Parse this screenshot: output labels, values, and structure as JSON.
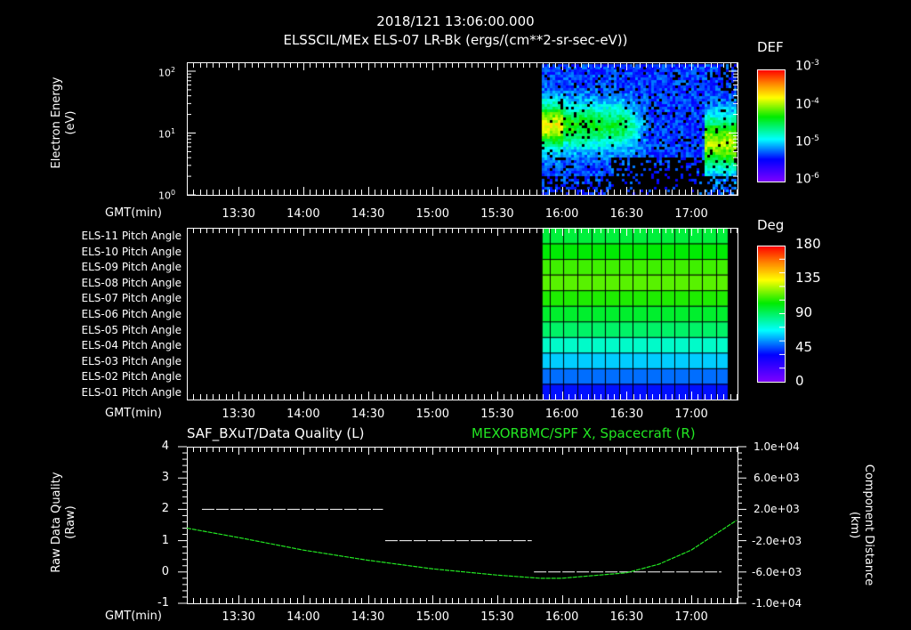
{
  "header": {
    "datetime": "2018/121 13:06:00.000",
    "title": "ELSSCIL/MEx ELS-07 LR-Bk  (ergs/(cm**2-sr-sec-eV))"
  },
  "time_axis": {
    "label": "GMT(min)",
    "start": "13:06",
    "end": "17:21",
    "ticks": [
      "13:30",
      "14:00",
      "14:30",
      "15:00",
      "15:30",
      "16:00",
      "16:30",
      "17:00"
    ]
  },
  "panel1": {
    "ylabel_line1": "Electron Energy",
    "ylabel_line2": "(eV)",
    "yticks": [
      "10^0",
      "10^1",
      "10^2"
    ],
    "colorbar": {
      "title": "DEF",
      "ticks": [
        "10^-3",
        "10^-4",
        "10^-5",
        "10^-6"
      ]
    }
  },
  "panel2": {
    "rows": [
      "ELS-11 Pitch Angle",
      "ELS-10 Pitch Angle",
      "ELS-09 Pitch Angle",
      "ELS-08 Pitch Angle",
      "ELS-07 Pitch Angle",
      "ELS-06 Pitch Angle",
      "ELS-05 Pitch Angle",
      "ELS-04 Pitch Angle",
      "ELS-03 Pitch Angle",
      "ELS-02 Pitch Angle",
      "ELS-01 Pitch Angle"
    ],
    "colorbar": {
      "title": "Deg",
      "ticks": [
        "180",
        "135",
        "90",
        "45",
        "0"
      ]
    }
  },
  "panel3": {
    "left_title": "SAF_BXuT/Data Quality (L)",
    "right_title": "MEXORBMC/SPF X, Spacecraft (R)",
    "ylabel_left_line1": "Raw Data Quality",
    "ylabel_left_line2": "(Raw)",
    "ylabel_right_line1": "Component Distance",
    "ylabel_right_line2": "(km)",
    "yticks_left": [
      "4",
      "3",
      "2",
      "1",
      "0",
      "-1"
    ],
    "yticks_right": [
      "1.0e+04",
      "6.0e+03",
      "2.0e+03",
      "-2.0e+03",
      "-6.0e+03",
      "-1.0e+04"
    ]
  },
  "chart_data": [
    {
      "type": "heatmap",
      "title": "ELSSCIL/MEx ELS-07 LR-Bk (ergs/(cm**2-sr-sec-eV))",
      "xlabel": "GMT(min)",
      "ylabel": "Electron Energy (eV)",
      "yscale": "log",
      "ylim": [
        1,
        150
      ],
      "xlim": [
        "13:06",
        "17:21"
      ],
      "data_start": "15:51",
      "colorbar_label": "DEF",
      "colorbar_range": [
        1e-06,
        0.001
      ],
      "features": [
        {
          "time_range": [
            "15:51",
            "16:25"
          ],
          "peak_energy_eV": 10,
          "peak_DEF": 0.0001
        },
        {
          "time_range": [
            "17:03",
            "17:21"
          ],
          "peak_energy_eV": 7,
          "peak_DEF": 0.0001
        }
      ]
    },
    {
      "type": "heatmap",
      "title": "Pitch Angle",
      "xlabel": "GMT(min)",
      "categories": [
        "ELS-01",
        "ELS-02",
        "ELS-03",
        "ELS-04",
        "ELS-05",
        "ELS-06",
        "ELS-07",
        "ELS-08",
        "ELS-09",
        "ELS-10",
        "ELS-11"
      ],
      "values_deg": [
        38,
        50,
        62,
        76,
        90,
        98,
        108,
        115,
        112,
        104,
        96
      ],
      "data_start": "15:51",
      "colorbar_label": "Deg",
      "colorbar_range": [
        0,
        180
      ]
    },
    {
      "type": "line",
      "xlabel": "GMT(min)",
      "series": [
        {
          "name": "SAF_BXuT/Data Quality (L)",
          "axis": "left",
          "color": "#ffffff",
          "style": "dashed",
          "segments": [
            {
              "x": [
                "13:13",
                "14:37"
              ],
              "y": 2
            },
            {
              "x": [
                "14:38",
                "15:46"
              ],
              "y": 1
            },
            {
              "x": [
                "15:47",
                "17:14"
              ],
              "y": 0
            }
          ]
        },
        {
          "name": "MEXORBMC/SPF X, Spacecraft (R)",
          "axis": "right",
          "color": "#22e622",
          "x": [
            "13:06",
            "13:30",
            "14:00",
            "14:30",
            "15:00",
            "15:30",
            "15:50",
            "16:00",
            "16:30",
            "16:45",
            "17:00",
            "17:21"
          ],
          "y": [
            -400,
            -1600,
            -3200,
            -4500,
            -5600,
            -6400,
            -6800,
            -6800,
            -6100,
            -5000,
            -3200,
            600
          ]
        }
      ],
      "ylim_left": [
        -1,
        4
      ],
      "ylim_right": [
        -10000,
        10000
      ]
    }
  ]
}
